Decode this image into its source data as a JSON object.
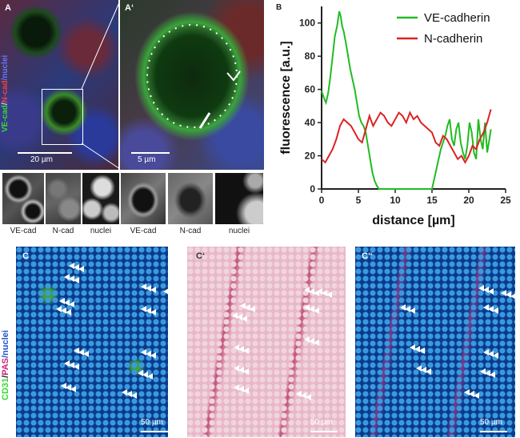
{
  "panelA": {
    "label": "A",
    "side_label": [
      "VE-cad",
      "/",
      "N-cad",
      "/nuclei"
    ],
    "scale": "20 µm",
    "channels": [
      "VE-cad",
      "N-cad",
      "nuclei"
    ]
  },
  "panelA2": {
    "label": "A‘",
    "scale": "5 µm",
    "channels": [
      "VE-cad",
      "N-cad",
      "nuclei"
    ]
  },
  "panelB": {
    "label": "B"
  },
  "chart_data": {
    "type": "line",
    "xlabel": "distance [µm]",
    "ylabel": "fluorescence [a.u.]",
    "xlim": [
      0,
      25
    ],
    "ylim": [
      0,
      110
    ],
    "xticks": [
      0,
      5,
      10,
      15,
      20,
      25
    ],
    "yticks": [
      0,
      20,
      40,
      60,
      80,
      100
    ],
    "legend_position": "top-right",
    "series": [
      {
        "name": "VE-cadherin",
        "color": "#22bb22",
        "x": [
          0,
          0.3,
          0.6,
          0.9,
          1.2,
          1.5,
          1.8,
          2.1,
          2.4,
          2.6,
          2.8,
          3.0,
          3.3,
          3.6,
          3.9,
          4.2,
          4.5,
          4.8,
          5.1,
          5.4,
          5.7,
          6.0,
          6.3,
          6.6,
          6.9,
          7.2,
          7.5,
          7.8,
          8.0,
          15.0,
          15.3,
          15.6,
          15.9,
          16.2,
          16.5,
          16.8,
          17.1,
          17.4,
          17.7,
          18.0,
          18.3,
          18.6,
          18.9,
          19.2,
          19.5,
          19.8,
          20.1,
          20.4,
          20.7,
          21.0,
          21.3,
          21.6,
          21.9,
          22.2,
          22.5,
          22.8,
          23.0
        ],
        "y": [
          59,
          55,
          52,
          58,
          68,
          80,
          92,
          98,
          107,
          104,
          98,
          95,
          88,
          80,
          72,
          66,
          60,
          52,
          44,
          40,
          38,
          34,
          26,
          18,
          10,
          5,
          2,
          0,
          0,
          0,
          6,
          12,
          18,
          24,
          28,
          32,
          38,
          42,
          30,
          26,
          36,
          40,
          28,
          22,
          18,
          26,
          40,
          34,
          22,
          18,
          42,
          30,
          24,
          40,
          22,
          30,
          36
        ]
      },
      {
        "name": "N-cadherin",
        "color": "#dd2222",
        "x": [
          0,
          0.5,
          1.0,
          1.5,
          2.0,
          2.5,
          3.0,
          3.5,
          4.0,
          4.5,
          5.0,
          5.5,
          6.0,
          6.5,
          7.0,
          7.5,
          8.0,
          8.5,
          9.0,
          9.5,
          10.0,
          10.5,
          11.0,
          11.5,
          12.0,
          12.5,
          13.0,
          13.5,
          14.0,
          14.5,
          15.0,
          15.5,
          16.0,
          16.5,
          17.0,
          17.5,
          18.0,
          18.5,
          19.0,
          19.5,
          20.0,
          20.5,
          21.0,
          21.5,
          22.0,
          22.5,
          23.0
        ],
        "y": [
          18,
          16,
          20,
          24,
          30,
          38,
          42,
          40,
          38,
          34,
          30,
          28,
          36,
          44,
          38,
          42,
          46,
          44,
          40,
          38,
          42,
          46,
          44,
          40,
          46,
          42,
          44,
          40,
          38,
          36,
          34,
          28,
          26,
          32,
          30,
          26,
          22,
          18,
          20,
          16,
          20,
          26,
          24,
          30,
          34,
          40,
          48
        ]
      }
    ]
  },
  "panelC": {
    "label": "C",
    "side_label": [
      "CD31",
      "/",
      "PAS",
      "/nuclei"
    ],
    "scale": "50 µm"
  },
  "panelC2": {
    "label": "C‘",
    "scale": "50 µm"
  },
  "panelC3": {
    "label": "C‘‘",
    "scale": "50 µm"
  }
}
